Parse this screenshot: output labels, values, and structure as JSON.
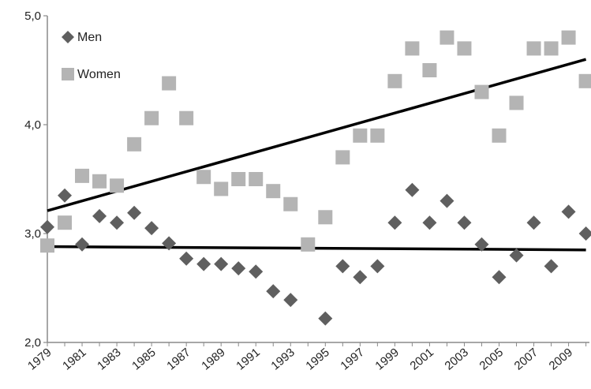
{
  "chart_data": {
    "type": "scatter",
    "title": "",
    "xlabel": "",
    "ylabel": "",
    "ylim": [
      2.0,
      5.0
    ],
    "xlim": [
      1979,
      2010
    ],
    "y_ticks": [
      "2,0",
      "3,0",
      "4,0",
      "5,0"
    ],
    "x_ticks": [
      "1979",
      "1981",
      "1983",
      "1985",
      "1987",
      "1989",
      "1991",
      "1993",
      "1995",
      "1997",
      "1999",
      "2001",
      "2003",
      "2005",
      "2007",
      "2009"
    ],
    "legend_position": "top-left",
    "x": [
      1979,
      1980,
      1981,
      1982,
      1983,
      1984,
      1985,
      1986,
      1987,
      1988,
      1989,
      1990,
      1991,
      1992,
      1993,
      1994,
      1995,
      1996,
      1997,
      1998,
      1999,
      2000,
      2001,
      2002,
      2003,
      2004,
      2005,
      2006,
      2007,
      2008,
      2009,
      2010
    ],
    "series": [
      {
        "name": "Men",
        "marker": "diamond",
        "color": "#5f5f5f",
        "values": [
          3.06,
          3.35,
          2.9,
          3.16,
          3.1,
          3.19,
          3.05,
          2.91,
          2.77,
          2.72,
          2.72,
          2.68,
          2.65,
          2.47,
          2.39,
          null,
          2.22,
          2.7,
          2.6,
          2.7,
          3.1,
          3.4,
          3.1,
          3.3,
          3.1,
          2.9,
          2.6,
          2.8,
          3.1,
          2.7,
          3.2,
          3.0
        ]
      },
      {
        "name": "Women",
        "marker": "square",
        "color": "#b4b4b4",
        "values": [
          2.89,
          3.1,
          3.53,
          3.48,
          3.44,
          3.82,
          4.06,
          4.38,
          4.06,
          3.52,
          3.41,
          3.5,
          3.5,
          3.39,
          3.27,
          2.9,
          3.15,
          3.7,
          3.9,
          3.9,
          4.4,
          4.7,
          4.5,
          4.8,
          4.7,
          4.3,
          3.9,
          4.2,
          4.7,
          4.7,
          4.8,
          4.4
        ]
      }
    ],
    "trendlines": [
      {
        "series": "Men",
        "x": [
          1979,
          2010
        ],
        "y": [
          2.88,
          2.85
        ],
        "color": "#000000"
      },
      {
        "series": "Women",
        "x": [
          1979,
          2010
        ],
        "y": [
          3.21,
          4.6
        ],
        "color": "#000000"
      }
    ]
  }
}
